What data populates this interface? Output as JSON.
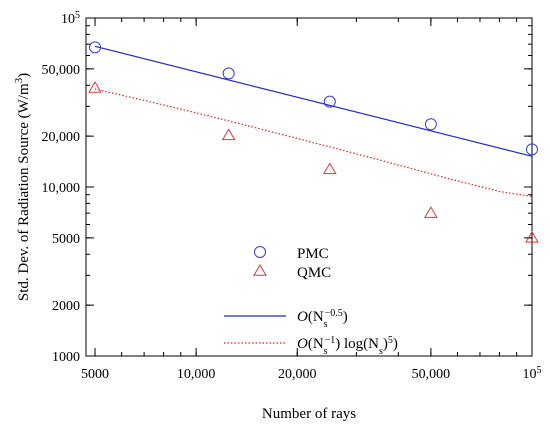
{
  "chart_data": {
    "type": "scatter",
    "xlabel": "Number of rays",
    "ylabel": "Std. Dev. of Radiation Source (W/m",
    "ylabel_sup": "3",
    "ylabel_close": ")",
    "x_scale": "log",
    "y_scale": "log",
    "xlim": [
      4700,
      100000
    ],
    "ylim": [
      1000,
      100000
    ],
    "x_ticks": [
      {
        "value": 5000,
        "label": "5000"
      },
      {
        "value": 10000,
        "label": "10,000"
      },
      {
        "value": 20000,
        "label": "20,000"
      },
      {
        "value": 50000,
        "label": "50,000"
      },
      {
        "value": 100000,
        "label": "10",
        "sup": "5"
      }
    ],
    "y_ticks": [
      {
        "value": 1000,
        "label": "1000"
      },
      {
        "value": 2000,
        "label": "2000"
      },
      {
        "value": 5000,
        "label": "5000"
      },
      {
        "value": 10000,
        "label": "10,000"
      },
      {
        "value": 20000,
        "label": "20,000"
      },
      {
        "value": 50000,
        "label": "50,000"
      },
      {
        "value": 100000,
        "label": "10",
        "sup": "5"
      }
    ],
    "series": [
      {
        "name": "PMC",
        "kind": "markers",
        "marker": "circle",
        "color": "#3a3acd",
        "x": [
          5000,
          12500,
          25000,
          50000,
          100000
        ],
        "y": [
          67000,
          47000,
          32000,
          23500,
          16700
        ]
      },
      {
        "name": "QMC",
        "kind": "markers",
        "marker": "triangle",
        "color": "#d23a3a",
        "x": [
          5000,
          12500,
          25000,
          50000,
          100000
        ],
        "y": [
          38500,
          20200,
          12700,
          7000,
          5000
        ]
      },
      {
        "kind": "line",
        "style": "solid",
        "color": "#1f2ccc",
        "x": [
          5000,
          100000
        ],
        "y": [
          68000,
          15200
        ]
      },
      {
        "kind": "line",
        "style": "dotted",
        "color": "#d42020",
        "x": [
          5000,
          7071,
          10000,
          14142,
          20000,
          28284,
          40000,
          56569,
          80000,
          100000
        ],
        "y": [
          38000,
          32400,
          27500,
          23100,
          19400,
          16200,
          13500,
          11200,
          9400,
          8800
        ]
      }
    ],
    "legend": [
      {
        "series_index": 0,
        "label": "PMC"
      },
      {
        "series_index": 1,
        "label": "QMC"
      },
      {
        "series_index": 2,
        "label_main": "O",
        "label_open": "(N",
        "label_sub": "s",
        "label_sup": "−0.5",
        "label_close": ")"
      },
      {
        "series_index": 3,
        "label_main": "O",
        "label_open": "(N",
        "label_sub": "s",
        "label_sup": "−1",
        "label_mid": ") log(N",
        "label_sub2": "s",
        "label_close": ")",
        "label_sup2": "5",
        "label_end": ")"
      }
    ]
  }
}
